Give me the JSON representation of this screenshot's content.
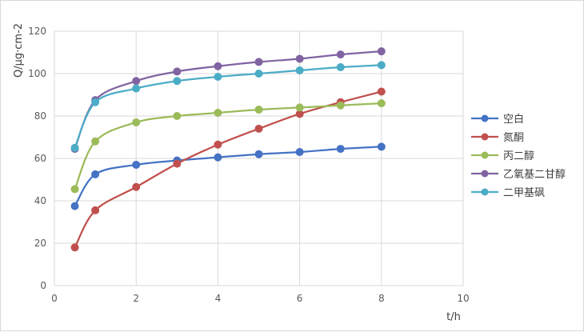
{
  "chart_data": {
    "type": "line",
    "xlabel": "t/h",
    "ylabel": "Q/μg·cm-2",
    "xlim": [
      0,
      10
    ],
    "ylim": [
      0,
      120
    ],
    "xticks": [
      0,
      2,
      4,
      6,
      8,
      10
    ],
    "yticks": [
      0,
      20,
      40,
      60,
      80,
      100,
      120
    ],
    "grid": "both",
    "smooth": true,
    "legend_position": "right",
    "x": [
      0.5,
      1,
      2,
      3,
      4,
      5,
      6,
      7,
      8
    ],
    "series": [
      {
        "name": "空白",
        "color": "#4472c4",
        "values": [
          37.5,
          52.5,
          57,
          59,
          60.5,
          62,
          63,
          64.5,
          65.5
        ]
      },
      {
        "name": "氮酮",
        "color": "#c0504d",
        "values": [
          18,
          35.5,
          46.5,
          57.5,
          66.5,
          74,
          81,
          86.5,
          91.5
        ]
      },
      {
        "name": "丙二醇",
        "color": "#9bbb59",
        "values": [
          45.5,
          68,
          77,
          80,
          81.5,
          83,
          84,
          85,
          86
        ]
      },
      {
        "name": "乙氧基二甘醇",
        "color": "#8064a2",
        "values": [
          64.5,
          87.5,
          96.5,
          101,
          103.5,
          105.5,
          107,
          109,
          110.5
        ]
      },
      {
        "name": "二甲基砜",
        "color": "#4bacc6",
        "values": [
          65,
          86.5,
          93,
          96.5,
          98.5,
          100,
          101.5,
          103,
          104
        ]
      }
    ]
  }
}
